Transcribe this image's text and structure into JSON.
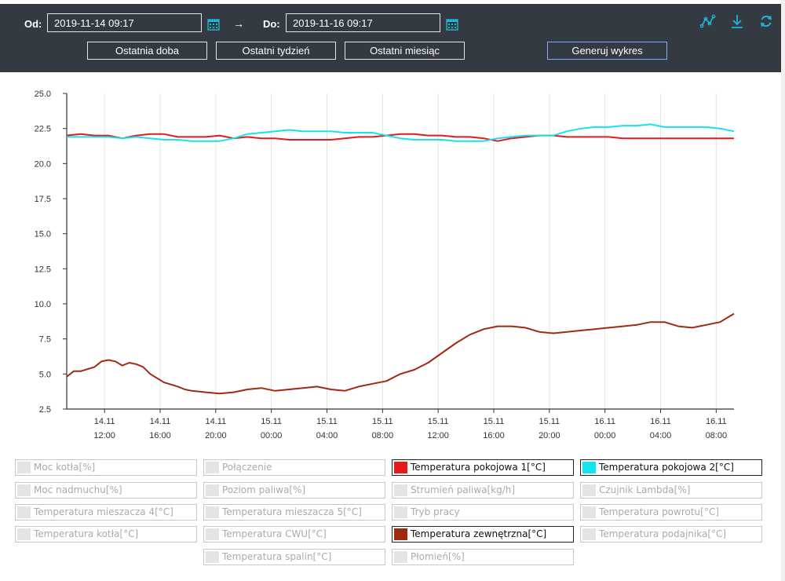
{
  "toolbar": {
    "from_label": "Od:",
    "from_value": "2019-11-14 09:17",
    "arrow": "→",
    "to_label": "Do:",
    "to_value": "2019-11-16 09:17",
    "btn_day": "Ostatnia doba",
    "btn_week": "Ostatni tydzień",
    "btn_month": "Ostatni miesiąc",
    "btn_generate": "Generuj wykres",
    "icons": [
      "chart-line-icon",
      "download-icon",
      "refresh-icon"
    ],
    "accent": "#1fb5d6"
  },
  "chart_data": {
    "type": "line",
    "title": "",
    "xlabel": "",
    "ylabel": "",
    "ylim": [
      2.5,
      25.0
    ],
    "yticks": [
      "2.5",
      "5.0",
      "7.5",
      "10.0",
      "12.5",
      "15.0",
      "17.5",
      "20.0",
      "22.5",
      "25.0"
    ],
    "x_range_hours": [
      0,
      48
    ],
    "xticks": [
      {
        "date": "14.11",
        "time": "12:00",
        "h": 2.72
      },
      {
        "date": "14.11",
        "time": "16:00",
        "h": 6.72
      },
      {
        "date": "14.11",
        "time": "20:00",
        "h": 10.72
      },
      {
        "date": "15.11",
        "time": "00:00",
        "h": 14.72
      },
      {
        "date": "15.11",
        "time": "04:00",
        "h": 18.72
      },
      {
        "date": "15.11",
        "time": "08:00",
        "h": 22.72
      },
      {
        "date": "15.11",
        "time": "12:00",
        "h": 26.72
      },
      {
        "date": "15.11",
        "time": "16:00",
        "h": 30.72
      },
      {
        "date": "15.11",
        "time": "20:00",
        "h": 34.72
      },
      {
        "date": "16.11",
        "time": "00:00",
        "h": 38.72
      },
      {
        "date": "16.11",
        "time": "04:00",
        "h": 42.72
      },
      {
        "date": "16.11",
        "time": "08:00",
        "h": 46.72
      }
    ],
    "grid": "vertical",
    "series": [
      {
        "name": "Temperatura pokojowa 1[°C]",
        "color": "#e41a1c",
        "points": [
          [
            0,
            22.0
          ],
          [
            1,
            22.1
          ],
          [
            2,
            22.0
          ],
          [
            3,
            22.0
          ],
          [
            4,
            21.8
          ],
          [
            5,
            22.0
          ],
          [
            6,
            22.1
          ],
          [
            7,
            22.1
          ],
          [
            8,
            21.9
          ],
          [
            9,
            21.9
          ],
          [
            10,
            21.9
          ],
          [
            11,
            22.0
          ],
          [
            12,
            21.8
          ],
          [
            13,
            21.9
          ],
          [
            14,
            21.8
          ],
          [
            15,
            21.8
          ],
          [
            16,
            21.7
          ],
          [
            17,
            21.7
          ],
          [
            18,
            21.7
          ],
          [
            19,
            21.7
          ],
          [
            20,
            21.8
          ],
          [
            21,
            21.9
          ],
          [
            22,
            21.9
          ],
          [
            23,
            22.0
          ],
          [
            24,
            22.1
          ],
          [
            25,
            22.1
          ],
          [
            26,
            22.0
          ],
          [
            27,
            22.0
          ],
          [
            28,
            21.9
          ],
          [
            29,
            21.9
          ],
          [
            30,
            21.8
          ],
          [
            31,
            21.6
          ],
          [
            32,
            21.8
          ],
          [
            33,
            21.9
          ],
          [
            34,
            22.0
          ],
          [
            35,
            22.0
          ],
          [
            36,
            21.9
          ],
          [
            37,
            21.9
          ],
          [
            38,
            21.9
          ],
          [
            39,
            21.9
          ],
          [
            40,
            21.8
          ],
          [
            41,
            21.8
          ],
          [
            42,
            21.8
          ],
          [
            43,
            21.8
          ],
          [
            44,
            21.8
          ],
          [
            45,
            21.8
          ],
          [
            46,
            21.8
          ],
          [
            47,
            21.8
          ],
          [
            48,
            21.8
          ]
        ]
      },
      {
        "name": "Temperatura pokojowa 2[°C]",
        "color": "#14e3f0",
        "points": [
          [
            0,
            21.9
          ],
          [
            1,
            21.9
          ],
          [
            2,
            21.9
          ],
          [
            3,
            21.9
          ],
          [
            4,
            21.8
          ],
          [
            5,
            21.9
          ],
          [
            6,
            21.8
          ],
          [
            7,
            21.7
          ],
          [
            8,
            21.7
          ],
          [
            9,
            21.6
          ],
          [
            10,
            21.6
          ],
          [
            11,
            21.6
          ],
          [
            12,
            21.8
          ],
          [
            13,
            22.1
          ],
          [
            14,
            22.2
          ],
          [
            15,
            22.3
          ],
          [
            16,
            22.4
          ],
          [
            17,
            22.3
          ],
          [
            18,
            22.3
          ],
          [
            19,
            22.3
          ],
          [
            20,
            22.2
          ],
          [
            21,
            22.2
          ],
          [
            22,
            22.2
          ],
          [
            23,
            22.0
          ],
          [
            24,
            21.8
          ],
          [
            25,
            21.7
          ],
          [
            26,
            21.7
          ],
          [
            27,
            21.7
          ],
          [
            28,
            21.6
          ],
          [
            29,
            21.6
          ],
          [
            30,
            21.6
          ],
          [
            31,
            21.8
          ],
          [
            32,
            21.9
          ],
          [
            33,
            22.0
          ],
          [
            34,
            22.0
          ],
          [
            35,
            22.0
          ],
          [
            36,
            22.3
          ],
          [
            37,
            22.5
          ],
          [
            38,
            22.6
          ],
          [
            39,
            22.6
          ],
          [
            40,
            22.7
          ],
          [
            41,
            22.7
          ],
          [
            42,
            22.8
          ],
          [
            43,
            22.6
          ],
          [
            44,
            22.6
          ],
          [
            45,
            22.6
          ],
          [
            46,
            22.6
          ],
          [
            47,
            22.5
          ],
          [
            48,
            22.3
          ]
        ]
      },
      {
        "name": "Temperatura zewnętrzna[°C]",
        "color": "#9e2a12",
        "points": [
          [
            0,
            4.8
          ],
          [
            0.5,
            5.2
          ],
          [
            1,
            5.2
          ],
          [
            2,
            5.5
          ],
          [
            2.5,
            5.9
          ],
          [
            3,
            6.0
          ],
          [
            3.5,
            5.9
          ],
          [
            4,
            5.6
          ],
          [
            4.5,
            5.8
          ],
          [
            5,
            5.7
          ],
          [
            5.5,
            5.5
          ],
          [
            6,
            5.0
          ],
          [
            7,
            4.4
          ],
          [
            8,
            4.1
          ],
          [
            8.5,
            3.9
          ],
          [
            9,
            3.8
          ],
          [
            10,
            3.7
          ],
          [
            11,
            3.6
          ],
          [
            12,
            3.7
          ],
          [
            13,
            3.9
          ],
          [
            14,
            4.0
          ],
          [
            15,
            3.8
          ],
          [
            16,
            3.9
          ],
          [
            17,
            4.0
          ],
          [
            18,
            4.1
          ],
          [
            19,
            3.9
          ],
          [
            20,
            3.8
          ],
          [
            21,
            4.1
          ],
          [
            22,
            4.3
          ],
          [
            23,
            4.5
          ],
          [
            24,
            5.0
          ],
          [
            25,
            5.3
          ],
          [
            26,
            5.8
          ],
          [
            27,
            6.5
          ],
          [
            28,
            7.2
          ],
          [
            29,
            7.8
          ],
          [
            30,
            8.2
          ],
          [
            31,
            8.4
          ],
          [
            32,
            8.4
          ],
          [
            33,
            8.3
          ],
          [
            34,
            8.0
          ],
          [
            35,
            7.9
          ],
          [
            36,
            8.0
          ],
          [
            37,
            8.1
          ],
          [
            38,
            8.2
          ],
          [
            39,
            8.3
          ],
          [
            40,
            8.4
          ],
          [
            41,
            8.5
          ],
          [
            42,
            8.7
          ],
          [
            43,
            8.7
          ],
          [
            44,
            8.4
          ],
          [
            45,
            8.3
          ],
          [
            46,
            8.5
          ],
          [
            47,
            8.7
          ],
          [
            48,
            9.3
          ]
        ]
      }
    ],
    "legend": {
      "placement": "bottom",
      "columns": [
        [
          {
            "label": "Moc kotła[%]",
            "active": false
          },
          {
            "label": "Moc nadmuchu[%]",
            "active": false
          },
          {
            "label": "Temperatura mieszacza 4[°C]",
            "active": false
          },
          {
            "label": "Temperatura kotła[°C]",
            "active": false
          }
        ],
        [
          {
            "label": "Połączenie",
            "active": false
          },
          {
            "label": "Poziom paliwa[%]",
            "active": false
          },
          {
            "label": "Temperatura mieszacza 5[°C]",
            "active": false
          },
          {
            "label": "Temperatura CWU[°C]",
            "active": false
          },
          {
            "label": "Temperatura spalin[°C]",
            "active": false
          }
        ],
        [
          {
            "label": "Temperatura pokojowa 1[°C]",
            "active": true,
            "color": "#e41a1c"
          },
          {
            "label": "Strumień paliwa[kg/h]",
            "active": false
          },
          {
            "label": "Tryb pracy",
            "active": false
          },
          {
            "label": "Temperatura zewnętrzna[°C]",
            "active": true,
            "color": "#9e2a12"
          },
          {
            "label": "Płomień[%]",
            "active": false
          }
        ],
        [
          {
            "label": "Temperatura pokojowa 2[°C]",
            "active": true,
            "color": "#14e3f0"
          },
          {
            "label": "Czujnik Lambda[%]",
            "active": false
          },
          {
            "label": "Temperatura powrotu[°C]",
            "active": false
          },
          {
            "label": "Temperatura podajnika[°C]",
            "active": false
          }
        ]
      ]
    }
  }
}
